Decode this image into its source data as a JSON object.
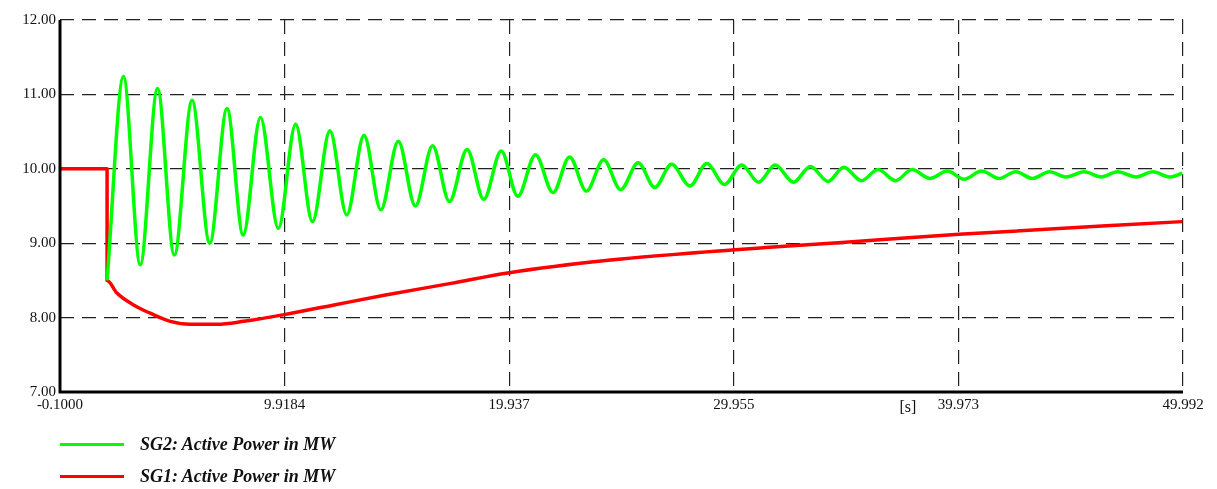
{
  "chart_data": {
    "type": "line",
    "xlabel": "[s]",
    "xlim": [
      -0.1,
      49.992
    ],
    "xticks": [
      {
        "value": -0.1,
        "label": "-0.1000"
      },
      9.9184,
      19.937,
      29.955,
      39.973,
      49.992
    ],
    "ylim": [
      7,
      12
    ],
    "yticks": [
      {
        "value": 7,
        "label": "7.00"
      },
      {
        "value": 8,
        "label": "8.00"
      },
      {
        "value": 9,
        "label": "9.00"
      },
      {
        "value": 10,
        "label": "10.00"
      },
      {
        "value": 11,
        "label": "11.00"
      },
      {
        "value": 12,
        "label": "12.00"
      }
    ],
    "grid": true,
    "legend": "bottom left",
    "marker": "none",
    "line_style": "solid",
    "series": [
      {
        "name": "SG2: Active Power in MW",
        "color": "#00ff00",
        "x": [
          2.0,
          2.73,
          3.48,
          4.25,
          5.0,
          5.79,
          6.58,
          7.35,
          8.07,
          8.84,
          9.64,
          10.41,
          11.16,
          11.94,
          12.69,
          13.46,
          14.21,
          14.99,
          15.75,
          16.52,
          17.27,
          18.06,
          18.8,
          19.58,
          20.32,
          21.11,
          21.89,
          22.63,
          23.38,
          24.15,
          24.91,
          25.69,
          26.43,
          27.18,
          28.0,
          28.75,
          29.54,
          30.31,
          31.06,
          31.8,
          32.62,
          33.37,
          34.16,
          34.86,
          35.65,
          36.39,
          37.17,
          37.91,
          38.7,
          39.48,
          40.23,
          41.01,
          41.79,
          42.53,
          43.28,
          44.03,
          44.77,
          45.59,
          46.34,
          47.08,
          47.9,
          48.65,
          49.39,
          49.96
        ],
        "values": [
          8.5,
          11.24,
          8.71,
          11.08,
          8.84,
          10.92,
          9.0,
          10.81,
          9.11,
          10.69,
          9.2,
          10.6,
          9.29,
          10.51,
          9.38,
          10.45,
          9.45,
          10.37,
          9.5,
          10.31,
          9.56,
          10.26,
          9.59,
          10.24,
          9.63,
          10.19,
          9.68,
          10.16,
          9.7,
          10.12,
          9.72,
          10.08,
          9.75,
          10.06,
          9.77,
          10.07,
          9.79,
          10.05,
          9.82,
          10.05,
          9.82,
          10.03,
          9.83,
          10.02,
          9.84,
          9.99,
          9.84,
          9.99,
          9.87,
          9.97,
          9.86,
          9.97,
          9.87,
          9.96,
          9.87,
          9.96,
          9.89,
          9.96,
          9.89,
          9.96,
          9.89,
          9.96,
          9.89,
          9.94
        ]
      },
      {
        "name": "SG1: Active Power in MW",
        "color": "#ff0000",
        "x": [
          -0.1,
          2.0,
          2.0,
          2.44,
          3.18,
          3.92,
          4.82,
          5.71,
          6.9,
          8.1,
          9.89,
          12.12,
          14.36,
          17.34,
          19.87,
          24.35,
          29.86,
          34.78,
          40.0,
          49.96
        ],
        "values": [
          10,
          10,
          8.5,
          8.33,
          8.17,
          8.06,
          7.95,
          7.91,
          7.91,
          7.95,
          8.04,
          8.17,
          8.3,
          8.46,
          8.6,
          8.77,
          8.91,
          9.01,
          9.12,
          9.29
        ]
      }
    ]
  }
}
